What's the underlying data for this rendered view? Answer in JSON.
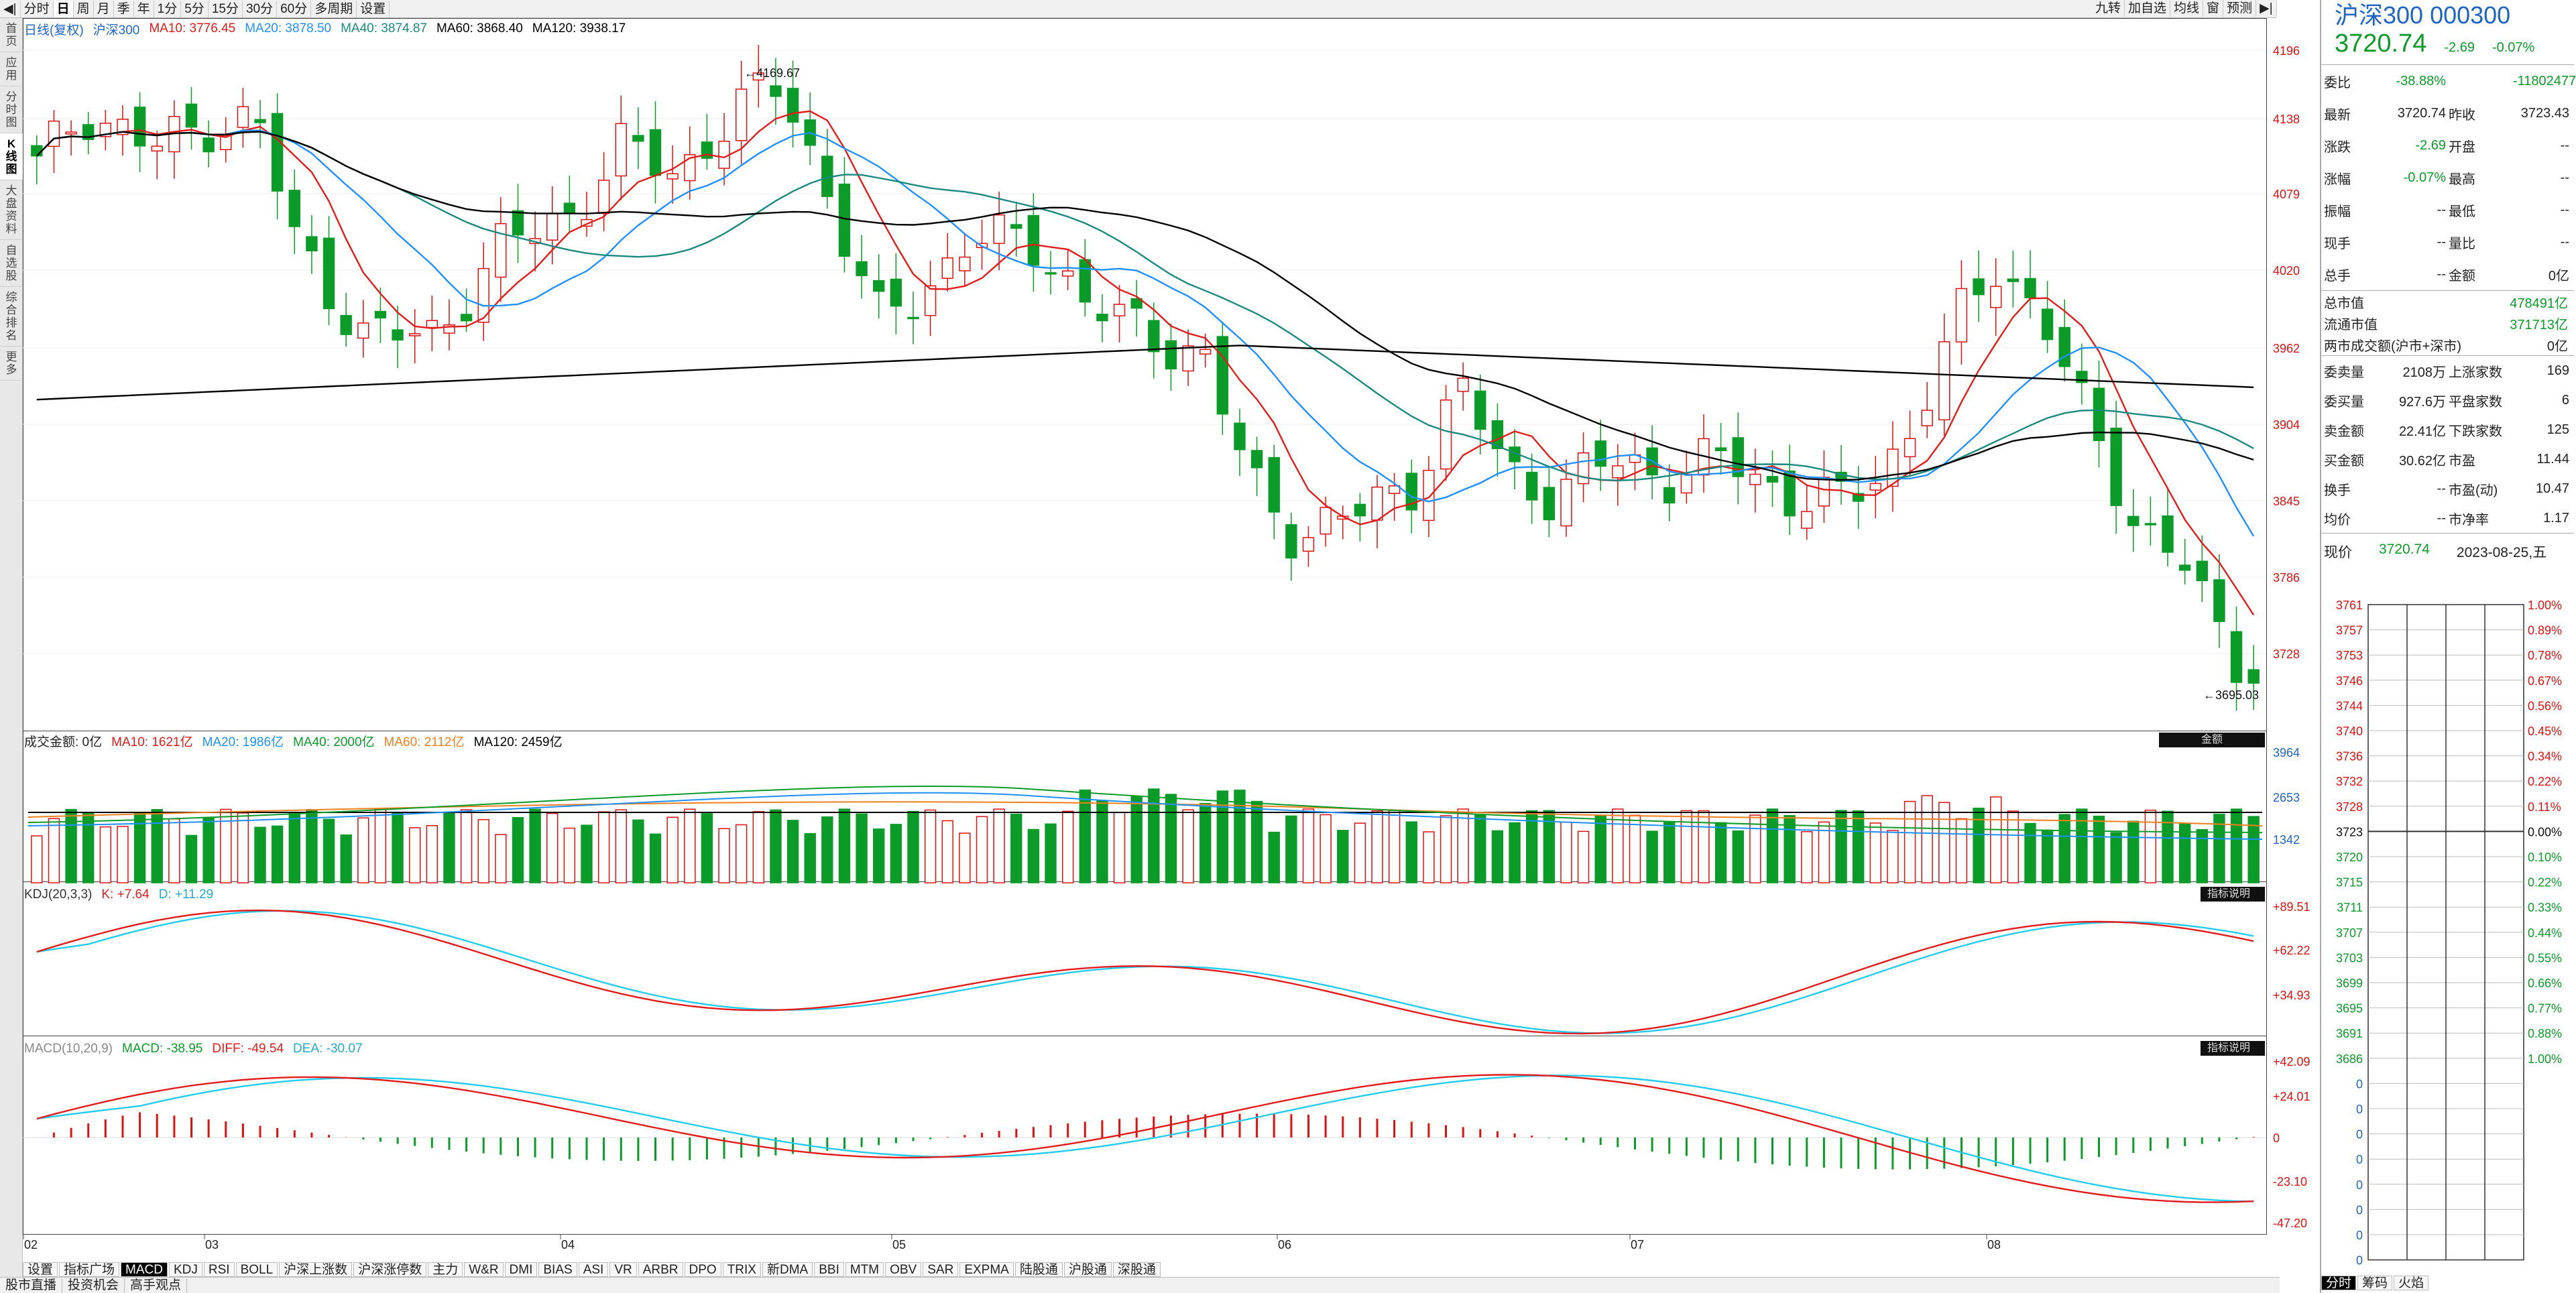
{
  "toolbar": {
    "periods": [
      "分时",
      "日",
      "周",
      "月",
      "季",
      "年",
      "1分",
      "5分",
      "15分",
      "30分",
      "60分",
      "多周期",
      "设置"
    ],
    "selected": "日",
    "right_tools": [
      "九转",
      "加自选",
      "均线",
      "窗",
      "预测"
    ]
  },
  "sidebar": [
    "首页",
    "应用",
    "分时图",
    "K线图",
    "大盘资料",
    "自选股",
    "综合排名",
    "更多"
  ],
  "sidebar_selected": "K线图",
  "main_legend": {
    "title": "日线(复权)",
    "name": "沪深300",
    "ma10": "MA10: 3776.45",
    "ma20": "MA20: 3878.50",
    "ma40": "MA40: 3874.87",
    "ma60": "MA60: 3868.40",
    "ma120": "MA120: 3938.17"
  },
  "price_axis": [
    "4196",
    "4138",
    "4079",
    "4020",
    "3962",
    "3904",
    "3845",
    "3786",
    "3728"
  ],
  "price_high_label": "4169.67",
  "price_low_label": "3695.03",
  "volume_legend": {
    "title": "成交金额: 0亿",
    "ma10": "MA10: 1621亿",
    "ma20": "MA20: 1986亿",
    "ma40": "MA40: 2000亿",
    "ma60": "MA60: 2112亿",
    "ma120": "MA120: 2459亿",
    "tag": "金额"
  },
  "volume_axis": [
    "3964",
    "2653",
    "1342"
  ],
  "kdj_legend": {
    "title": "KDJ(20,3,3)",
    "k": "K: +7.64",
    "d": "D: +11.29",
    "tag": "指标说明"
  },
  "kdj_axis": [
    "+89.51",
    "+62.22",
    "+34.93"
  ],
  "macd_legend": {
    "title": "MACD(10,20,9)",
    "macd": "MACD: -38.95",
    "diff": "DIFF: -49.54",
    "dea": "DEA: -30.07",
    "tag": "指标说明"
  },
  "macd_axis": [
    "+42.09",
    "+24.01",
    "0",
    "-23.10",
    "-47.20"
  ],
  "date_axis": [
    "02",
    "03",
    "04",
    "05",
    "06",
    "07",
    "08"
  ],
  "indicator_tabs": [
    "设置",
    "指标广场",
    "MACD",
    "KDJ",
    "RSI",
    "BOLL",
    "沪深上涨数",
    "沪深涨停数",
    "主力",
    "W&R",
    "DMI",
    "BIAS",
    "ASI",
    "VR",
    "ARBR",
    "DPO",
    "TRIX",
    "新DMA",
    "BBI",
    "MTM",
    "OBV",
    "SAR",
    "EXPMA",
    "陆股通",
    "沪股通",
    "深股通"
  ],
  "indicator_selected": "MACD",
  "bottom_links": [
    "股市直播",
    "投资机会",
    "高手观点"
  ],
  "quote": {
    "name": "沪深300 000300",
    "price": "3720.74",
    "change": "-2.69",
    "change_pct": "-0.07%",
    "rows": [
      [
        "委比",
        "-38.88%",
        "",
        "-11802477"
      ],
      [
        "最新",
        "3720.74",
        "昨收",
        "3723.43"
      ],
      [
        "涨跌",
        "-2.69",
        "开盘",
        "--"
      ],
      [
        "涨幅",
        "-0.07%",
        "最高",
        "--"
      ],
      [
        "振幅",
        "--",
        "最低",
        "--"
      ],
      [
        "现手",
        "--",
        "量比",
        "--"
      ],
      [
        "总手",
        "--",
        "金额",
        "0亿"
      ]
    ],
    "rows2": [
      [
        "总市值",
        "",
        "",
        "478491亿"
      ],
      [
        "流通市值",
        "",
        "",
        "371713亿"
      ],
      [
        "两市成交额(沪市+深市)",
        "",
        "",
        "0亿"
      ]
    ],
    "rows3": [
      [
        "委卖量",
        "2108万",
        "上涨家数",
        "169"
      ],
      [
        "委买量",
        "927.6万",
        "平盘家数",
        "6"
      ],
      [
        "卖金额",
        "22.41亿",
        "下跌家数",
        "125"
      ],
      [
        "买金额",
        "30.62亿",
        "市盈",
        "11.44"
      ],
      [
        "换手",
        "--",
        "市盈(动)",
        "10.47"
      ],
      [
        "均价",
        "--",
        "市净率",
        "1.17"
      ]
    ],
    "now_label": "现价",
    "now_price": "3720.74",
    "now_date": "2023-08-25,五",
    "mini_left": [
      "3761",
      "3757",
      "3753",
      "3746",
      "3744",
      "3740",
      "3736",
      "3732",
      "3728",
      "3723",
      "3720",
      "3715",
      "3711",
      "3707",
      "3703",
      "3699",
      "3695",
      "3691",
      "3686",
      "0",
      "0",
      "0",
      "0",
      "0",
      "0",
      "0",
      "0"
    ],
    "mini_right": [
      "1.00%",
      "0.89%",
      "0.78%",
      "0.67%",
      "0.56%",
      "0.45%",
      "0.34%",
      "0.22%",
      "0.11%",
      "0.00%",
      "0.10%",
      "0.22%",
      "0.33%",
      "0.44%",
      "0.55%",
      "0.66%",
      "0.77%",
      "0.88%",
      "1.00%"
    ],
    "bottom_tabs": [
      "分时",
      "筹码",
      "火焰"
    ]
  },
  "colors": {
    "up": "#e01010",
    "down": "#0a9b28",
    "ma10": "#e31b1b",
    "ma20": "#1e90ff",
    "ma40": "#1a8a80",
    "ma60": "#000000",
    "ma120": "#000000",
    "k": "#e31b1b",
    "d": "#22ccee"
  }
}
